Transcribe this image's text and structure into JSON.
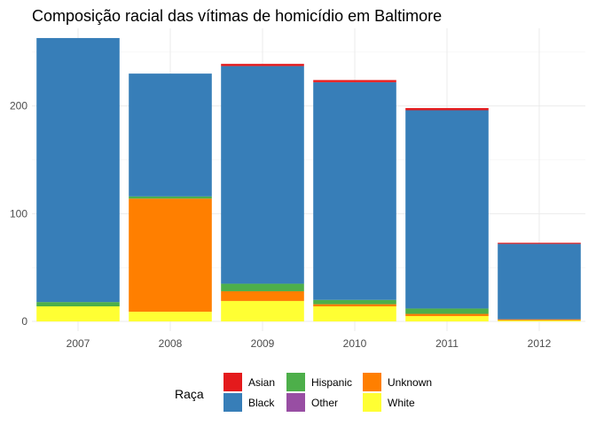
{
  "chart_data": {
    "type": "bar",
    "stacked": true,
    "title": "Composição racial das vítimas de homicídio em Baltimore",
    "xlabel": "",
    "ylabel": "",
    "categories": [
      "2007",
      "2008",
      "2009",
      "2010",
      "2011",
      "2012"
    ],
    "y_ticks": [
      0,
      100,
      200
    ],
    "ylim": [
      -9,
      272
    ],
    "grid": true,
    "legend": {
      "title": "Raça",
      "position": "bottom"
    },
    "series": [
      {
        "name": "White",
        "color": "#FFFF33",
        "values": [
          14,
          9,
          19,
          14,
          5,
          1
        ]
      },
      {
        "name": "Unknown",
        "color": "#FF7F00",
        "values": [
          0,
          105,
          9,
          2,
          2,
          1
        ]
      },
      {
        "name": "Other",
        "color": "#984EA3",
        "values": [
          0,
          0,
          0,
          0,
          0,
          0
        ]
      },
      {
        "name": "Hispanic",
        "color": "#4DAF4A",
        "values": [
          4,
          2,
          7,
          4,
          5,
          0
        ]
      },
      {
        "name": "Black",
        "color": "#377EB8",
        "values": [
          245,
          114,
          202,
          202,
          184,
          70
        ]
      },
      {
        "name": "Asian",
        "color": "#E41A1C",
        "values": [
          0,
          0,
          2,
          2,
          2,
          1
        ]
      }
    ],
    "legend_order": [
      "Asian",
      "Black",
      "Hispanic",
      "Other",
      "Unknown",
      "White"
    ]
  }
}
